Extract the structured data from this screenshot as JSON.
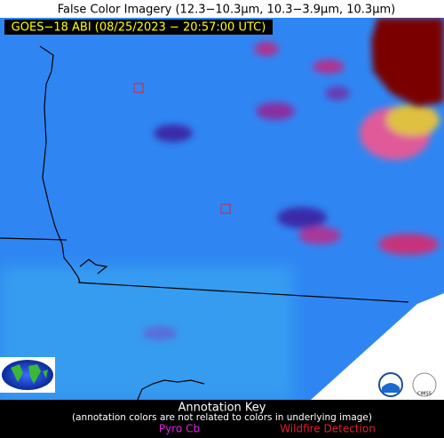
{
  "header": {
    "title": "False Color Imagery (12.3−10.3µm, 10.3−3.9µm, 10.3µm)",
    "subtitle": "GOES−18 ABI (08/25/2023 − 20:57:00 UTC)"
  },
  "key": {
    "title": "Annotation Key",
    "note": "(annotation colors are not related to colors in underlying image)",
    "items": [
      "Pyro Cb",
      "Wildfire Detection"
    ]
  },
  "logos": {
    "cimss": "CIMSS"
  }
}
